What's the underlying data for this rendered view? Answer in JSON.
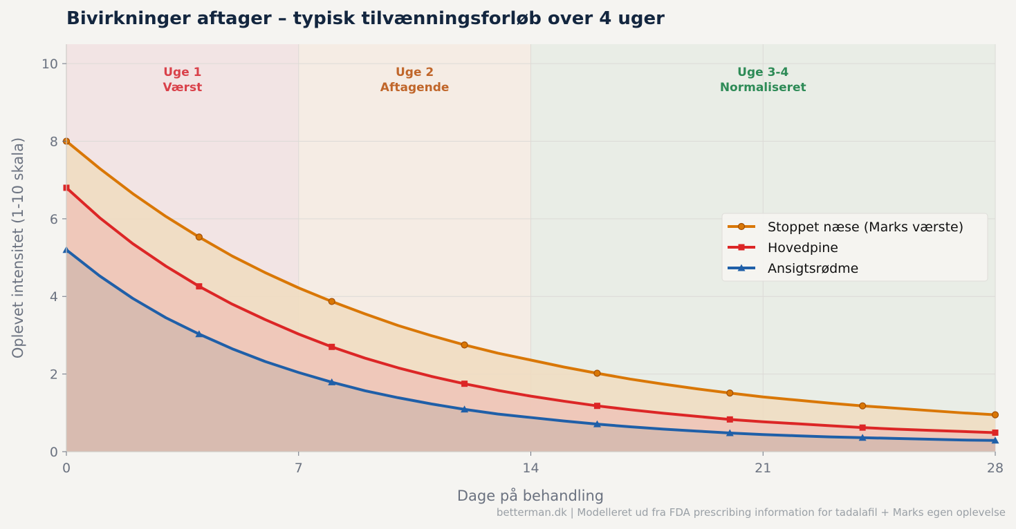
{
  "chart_data": {
    "type": "line",
    "title": "Bivirkninger aftager – typisk tilvænningsforløb over 4 uger",
    "xlabel": "Dage på behandling",
    "ylabel": "Oplevet intensitet (1-10 skala)",
    "xlim": [
      0,
      28
    ],
    "ylim": [
      0,
      10.5
    ],
    "xticks": [
      0,
      7,
      14,
      21,
      28
    ],
    "yticks": [
      0,
      2,
      4,
      6,
      8,
      10
    ],
    "grid": true,
    "legend_position": "right",
    "bands": [
      {
        "x0": 0,
        "x1": 7,
        "title": "Uge 1",
        "subtitle": "Værst",
        "fill": "#f2e4e4",
        "text_color": "#d9414a"
      },
      {
        "x0": 7,
        "x1": 14,
        "title": "Uge 2",
        "subtitle": "Aftagende",
        "fill": "#f5ece4",
        "text_color": "#c0662a"
      },
      {
        "x0": 14,
        "x1": 28,
        "title": "Uge 3-4",
        "subtitle": "Normaliseret",
        "fill": "#e9ede6",
        "text_color": "#2e8b57"
      }
    ],
    "x": [
      0,
      1,
      2,
      3,
      4,
      5,
      6,
      7,
      8,
      9,
      10,
      11,
      12,
      13,
      14,
      15,
      16,
      17,
      18,
      19,
      20,
      21,
      22,
      23,
      24,
      25,
      26,
      27,
      28
    ],
    "series": [
      {
        "name": "Stoppet næse (Marks værste)",
        "color": "#d97706",
        "fill": "#f0dcc0",
        "marker": "circle",
        "marker_x": [
          0,
          4,
          8,
          12,
          16,
          20,
          24,
          28
        ],
        "values": [
          8.0,
          7.3,
          6.65,
          6.06,
          5.53,
          5.04,
          4.61,
          4.22,
          3.87,
          3.55,
          3.25,
          2.99,
          2.75,
          2.54,
          2.36,
          2.18,
          2.02,
          1.87,
          1.74,
          1.62,
          1.51,
          1.41,
          1.33,
          1.25,
          1.18,
          1.12,
          1.06,
          1.0,
          0.95
        ]
      },
      {
        "name": "Hovedpine",
        "color": "#dc2626",
        "fill": "#efc4b7",
        "marker": "square",
        "marker_x": [
          0,
          4,
          8,
          12,
          16,
          20,
          24,
          28
        ],
        "values": [
          6.8,
          6.03,
          5.36,
          4.78,
          4.26,
          3.8,
          3.4,
          3.03,
          2.7,
          2.41,
          2.16,
          1.94,
          1.75,
          1.58,
          1.43,
          1.3,
          1.18,
          1.08,
          0.99,
          0.91,
          0.83,
          0.77,
          0.72,
          0.67,
          0.62,
          0.58,
          0.55,
          0.52,
          0.49
        ]
      },
      {
        "name": "Ansigtsrødme",
        "color": "#1f5fa8",
        "fill": "#d4b8ae",
        "marker": "triangle",
        "marker_x": [
          0,
          4,
          8,
          12,
          16,
          20,
          24,
          28
        ],
        "values": [
          5.2,
          4.53,
          3.95,
          3.45,
          3.03,
          2.65,
          2.32,
          2.04,
          1.79,
          1.57,
          1.39,
          1.23,
          1.09,
          0.97,
          0.88,
          0.79,
          0.71,
          0.64,
          0.58,
          0.53,
          0.48,
          0.44,
          0.41,
          0.38,
          0.36,
          0.34,
          0.32,
          0.3,
          0.29
        ]
      }
    ],
    "footer": "betterman.dk | Modelleret ud fra FDA prescribing information for tadalafil + Marks egen oplevelse"
  }
}
